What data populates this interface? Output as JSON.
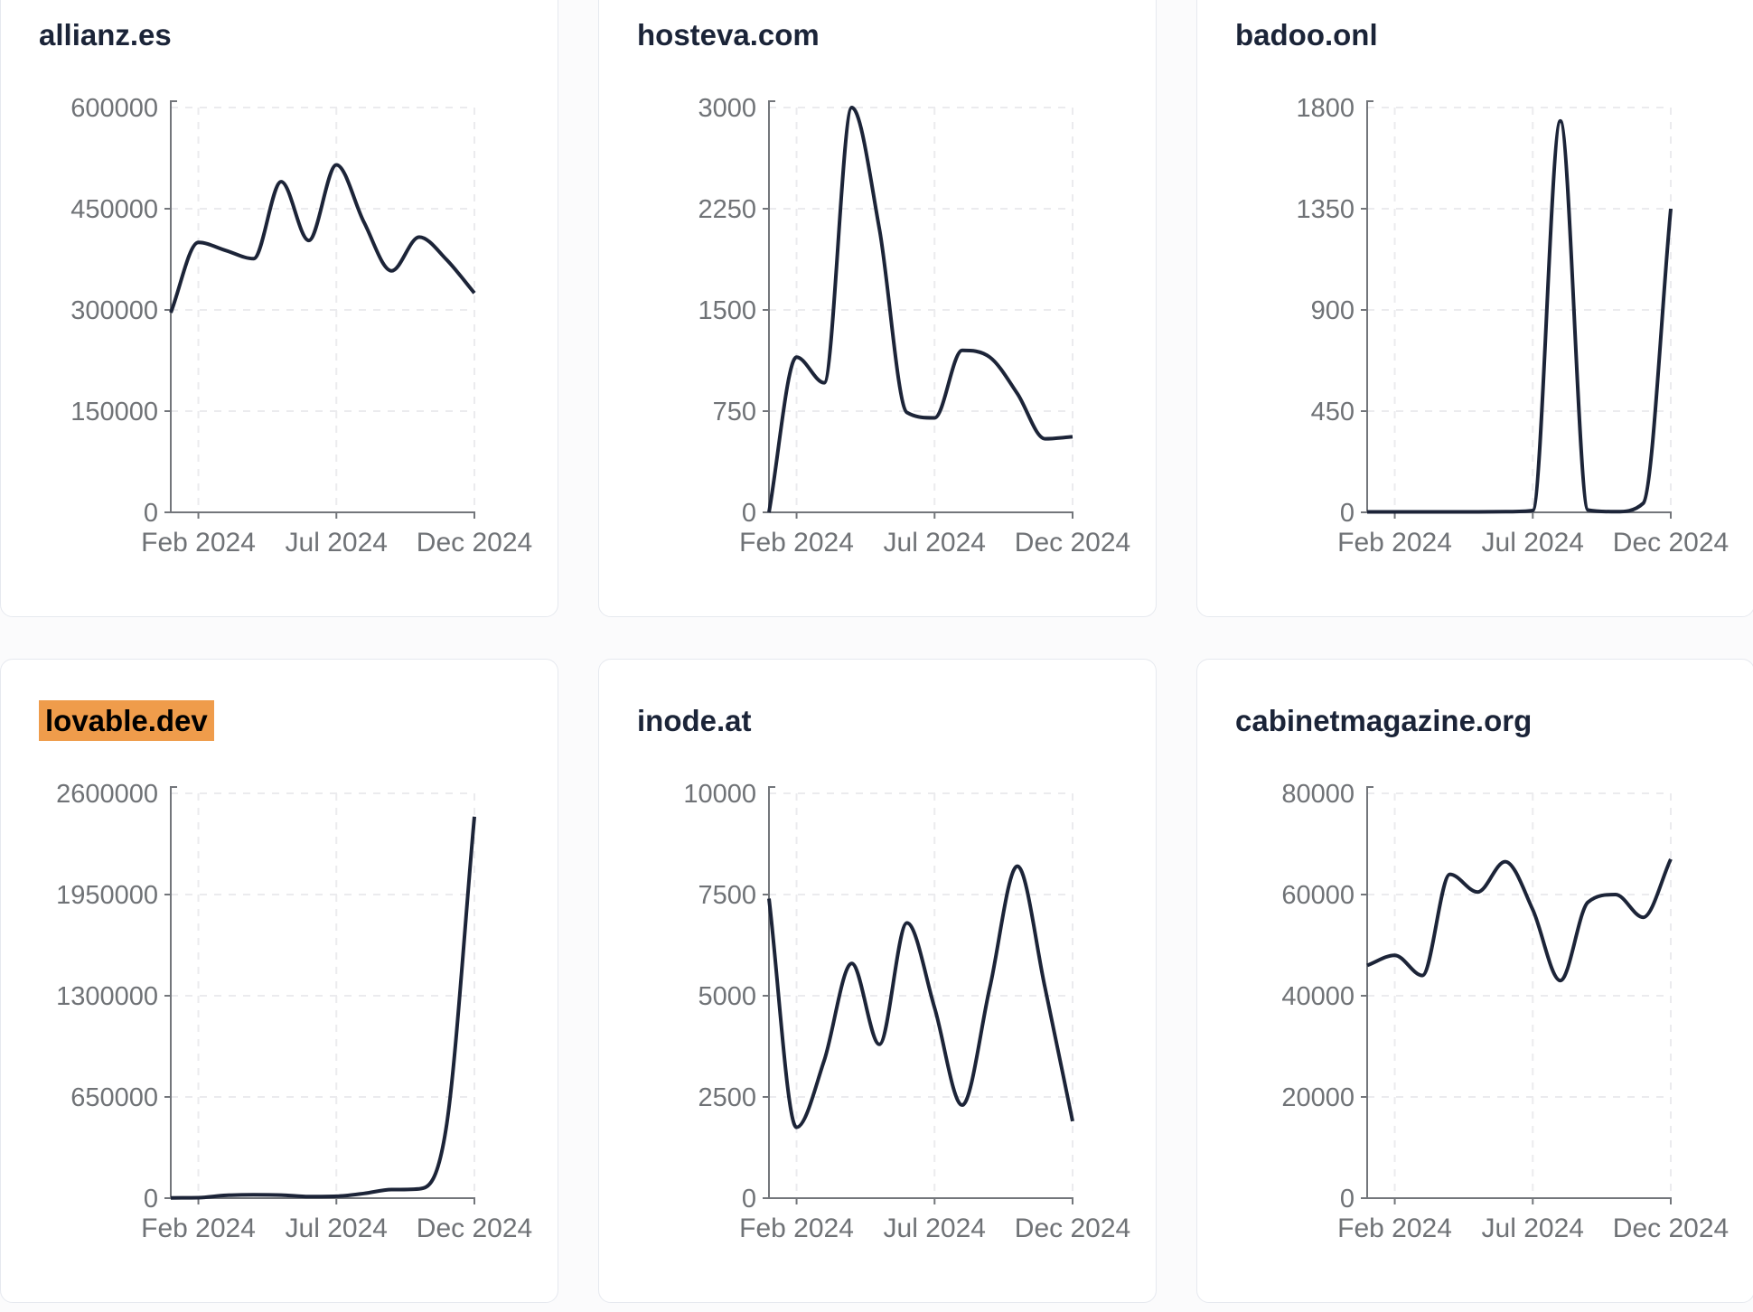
{
  "page": {
    "background": "#fbfbfc"
  },
  "theme": {
    "line_color": "#1c2438",
    "title_color": "#1b2438",
    "axis_color": "#73767b",
    "tick_label_color": "#6f7276",
    "grid_color": "#ebebee",
    "card_border": "#e6e9ef",
    "card_bg": "#ffffff",
    "highlight_bg": "#ef9c4b",
    "highlight_text": "#000000"
  },
  "chart_data": [
    {
      "type": "line",
      "title": "allianz.es",
      "highlighted": false,
      "x": [
        "Jan 2024",
        "Feb 2024",
        "Mar 2024",
        "Apr 2024",
        "May 2024",
        "Jun 2024",
        "Jul 2024",
        "Aug 2024",
        "Sep 2024",
        "Oct 2024",
        "Nov 2024",
        "Dec 2024"
      ],
      "values": [
        296000,
        400000,
        388000,
        376000,
        490000,
        403000,
        515000,
        430000,
        358000,
        408000,
        374000,
        325000
      ],
      "ylim": [
        0,
        600000
      ],
      "y_ticks": [
        0,
        150000,
        300000,
        450000,
        600000
      ],
      "x_tick_labels": [
        "Feb 2024",
        "Jul 2024",
        "Dec 2024"
      ],
      "x_tick_indices": [
        1,
        6,
        11
      ],
      "grid": "dashed",
      "legend": null
    },
    {
      "type": "line",
      "title": "hosteva.com",
      "highlighted": false,
      "x": [
        "Jan 2024",
        "Feb 2024",
        "Mar 2024",
        "Apr 2024",
        "May 2024",
        "Jun 2024",
        "Jul 2024",
        "Aug 2024",
        "Sep 2024",
        "Oct 2024",
        "Nov 2024",
        "Dec 2024"
      ],
      "values": [
        0,
        1150,
        960,
        3000,
        2100,
        740,
        700,
        1200,
        1150,
        880,
        545,
        560
      ],
      "ylim": [
        0,
        3000
      ],
      "y_ticks": [
        0,
        750,
        1500,
        2250,
        3000
      ],
      "x_tick_labels": [
        "Feb 2024",
        "Jul 2024",
        "Dec 2024"
      ],
      "x_tick_indices": [
        1,
        6,
        11
      ],
      "grid": "dashed",
      "legend": null
    },
    {
      "type": "line",
      "title": "badoo.onl",
      "highlighted": false,
      "x": [
        "Jan 2024",
        "Feb 2024",
        "Mar 2024",
        "Apr 2024",
        "May 2024",
        "Jun 2024",
        "Jul 2024",
        "Aug 2024",
        "Sep 2024",
        "Oct 2024",
        "Nov 2024",
        "Dec 2024"
      ],
      "values": [
        2,
        2,
        2,
        2,
        2,
        3,
        8,
        1740,
        10,
        3,
        40,
        1350
      ],
      "ylim": [
        0,
        1800
      ],
      "y_ticks": [
        0,
        450,
        900,
        1350,
        1800
      ],
      "x_tick_labels": [
        "Feb 2024",
        "Jul 2024",
        "Dec 2024"
      ],
      "x_tick_indices": [
        1,
        6,
        11
      ],
      "grid": "dashed",
      "legend": null
    },
    {
      "type": "line",
      "title": "lovable.dev",
      "highlighted": true,
      "x": [
        "Jan 2024",
        "Feb 2024",
        "Mar 2024",
        "Apr 2024",
        "May 2024",
        "Jun 2024",
        "Jul 2024",
        "Aug 2024",
        "Sep 2024",
        "Oct 2024",
        "Nov 2024",
        "Dec 2024"
      ],
      "values": [
        2000,
        3000,
        18000,
        22000,
        20000,
        10000,
        12000,
        30000,
        55000,
        60000,
        480000,
        2450000
      ],
      "ylim": [
        0,
        2600000
      ],
      "y_ticks": [
        0,
        650000,
        1300000,
        1950000,
        2600000
      ],
      "x_tick_labels": [
        "Feb 2024",
        "Jul 2024",
        "Dec 2024"
      ],
      "x_tick_indices": [
        1,
        6,
        11
      ],
      "grid": "dashed",
      "legend": null
    },
    {
      "type": "line",
      "title": "inode.at",
      "highlighted": false,
      "x": [
        "Jan 2024",
        "Feb 2024",
        "Mar 2024",
        "Apr 2024",
        "May 2024",
        "Jun 2024",
        "Jul 2024",
        "Aug 2024",
        "Sep 2024",
        "Oct 2024",
        "Nov 2024",
        "Dec 2024"
      ],
      "values": [
        7400,
        1750,
        3400,
        5800,
        3800,
        6800,
        4700,
        2300,
        5200,
        8200,
        5200,
        1900
      ],
      "ylim": [
        0,
        10000
      ],
      "y_ticks": [
        0,
        2500,
        5000,
        7500,
        10000
      ],
      "x_tick_labels": [
        "Feb 2024",
        "Jul 2024",
        "Dec 2024"
      ],
      "x_tick_indices": [
        1,
        6,
        11
      ],
      "grid": "dashed",
      "legend": null
    },
    {
      "type": "line",
      "title": "cabinetmagazine.org",
      "highlighted": false,
      "x": [
        "Jan 2024",
        "Feb 2024",
        "Mar 2024",
        "Apr 2024",
        "May 2024",
        "Jun 2024",
        "Jul 2024",
        "Aug 2024",
        "Sep 2024",
        "Oct 2024",
        "Nov 2024",
        "Dec 2024"
      ],
      "values": [
        46000,
        48000,
        44000,
        64000,
        60500,
        66500,
        57000,
        43000,
        58500,
        60000,
        55500,
        67000
      ],
      "ylim": [
        0,
        80000
      ],
      "y_ticks": [
        0,
        20000,
        40000,
        60000,
        80000
      ],
      "x_tick_labels": [
        "Feb 2024",
        "Jul 2024",
        "Dec 2024"
      ],
      "x_tick_indices": [
        1,
        6,
        11
      ],
      "grid": "dashed",
      "legend": null
    }
  ]
}
